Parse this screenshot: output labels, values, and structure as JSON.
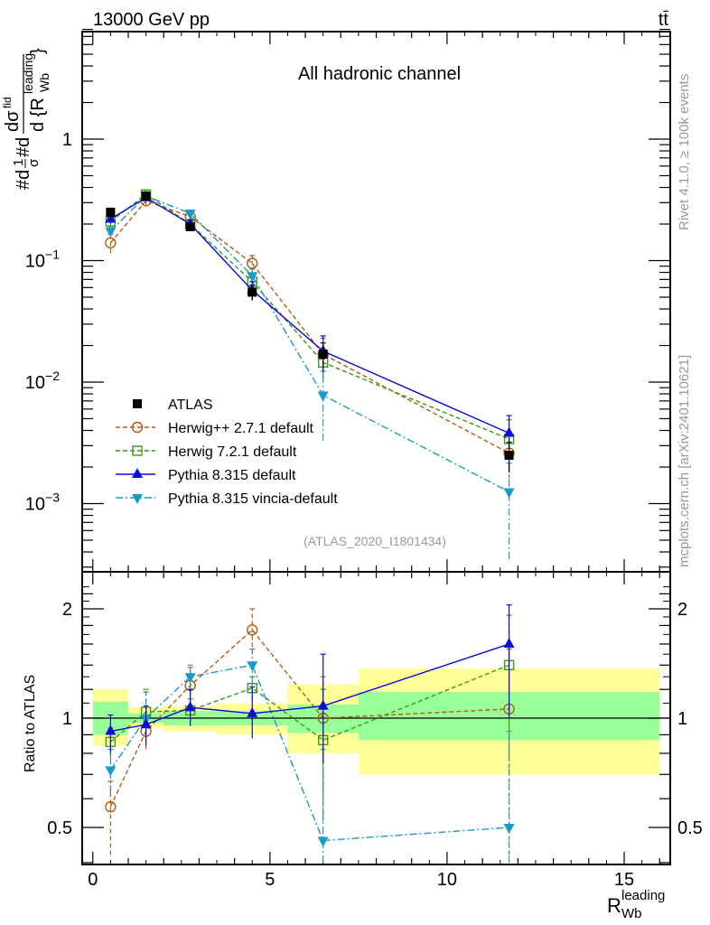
{
  "header": {
    "energy_label": "13000 GeV pp",
    "process_label": "tt̄",
    "channel_label": "All hadronic channel",
    "analysis_id": "(ATLAS_2020_I1801434)",
    "side_rivet": "Rivet 4.1.0, ≥ 100k events",
    "side_mcplots": "mcplots.cern.ch [arXiv:2401.10621]"
  },
  "chart_data": [
    {
      "type": "line",
      "panel": "main",
      "title": "All hadronic channel",
      "ylabel": "#d¹/σ #d dσ / d{R_Wb^leading}",
      "yscale": "log",
      "ylim": [
        0.0003,
        8
      ],
      "xlim": [
        -0.3,
        16.3
      ],
      "yticks": [
        {
          "value": 1,
          "label": "1"
        },
        {
          "value": 0.1,
          "label": "10",
          "exp": "−1"
        },
        {
          "value": 0.01,
          "label": "10",
          "exp": "−2"
        },
        {
          "value": 0.001,
          "label": "10",
          "exp": "−3"
        }
      ],
      "x": [
        0.5,
        1.5,
        2.75,
        4.5,
        6.5,
        11.75
      ],
      "bin_edges": [
        0,
        1,
        2,
        3.5,
        5.5,
        7.5,
        16
      ],
      "legend_position": "lower-left",
      "series": [
        {
          "name": "ATLAS",
          "key": "atlas",
          "color": "#000000",
          "marker": "square-filled",
          "dash": "none",
          "values": [
            0.25,
            0.34,
            0.19,
            0.055,
            0.017,
            0.0025
          ],
          "err": [
            0.02,
            0.02,
            0.012,
            0.008,
            0.004,
            0.0007
          ]
        },
        {
          "name": "Herwig++ 2.7.1 default",
          "key": "herwigpp",
          "color": "#b35c14",
          "marker": "circle-open",
          "dash": "dashed",
          "values": [
            0.14,
            0.31,
            0.23,
            0.095,
            0.017,
            0.0026
          ],
          "err": [
            0.025,
            0.025,
            0.02,
            0.015,
            0.006,
            0.0012
          ]
        },
        {
          "name": "Herwig 7.2.1 default",
          "key": "herwig7",
          "color": "#3a9a18",
          "marker": "square-open",
          "dash": "dashed",
          "values": [
            0.21,
            0.35,
            0.2,
            0.067,
            0.0145,
            0.0034
          ],
          "err": [
            0.015,
            0.02,
            0.015,
            0.009,
            0.004,
            0.0015
          ]
        },
        {
          "name": "Pythia 8.315 default",
          "key": "pythia",
          "color": "#0a0ad6",
          "marker": "triangle-up-filled",
          "dash": "solid",
          "values": [
            0.22,
            0.33,
            0.2,
            0.057,
            0.018,
            0.0038
          ],
          "err": [
            0.02,
            0.02,
            0.015,
            0.01,
            0.006,
            0.0015
          ]
        },
        {
          "name": "Pythia 8.315 vincia-default",
          "key": "vincia",
          "color": "#1a9ac4",
          "marker": "triangle-down-filled",
          "dash": "dashdot",
          "values": [
            0.175,
            0.34,
            0.245,
            0.075,
            0.0078,
            0.00125
          ],
          "err": [
            0.015,
            0.02,
            0.015,
            0.01,
            0.0045,
            0.0009
          ]
        }
      ]
    },
    {
      "type": "line",
      "panel": "ratio",
      "ylabel": "Ratio to ATLAS",
      "xlabel": "R_Wb^leading",
      "yscale": "log",
      "ylim": [
        0.4,
        2.35
      ],
      "xlim": [
        -0.3,
        16.3
      ],
      "xticks": [
        0,
        5,
        10,
        15
      ],
      "yticks": [
        0.5,
        1,
        2
      ],
      "x": [
        0.5,
        1.5,
        2.75,
        4.5,
        6.5,
        11.75
      ],
      "bin_edges": [
        0,
        1,
        2,
        3.5,
        5.5,
        7.5,
        16
      ],
      "bands": {
        "stat_color": "#99ff99",
        "total_color": "#ffff99",
        "stat": [
          [
            0.9,
            1.11
          ],
          [
            0.97,
            1.03
          ],
          [
            0.955,
            1.045
          ],
          [
            0.955,
            1.045
          ],
          [
            0.91,
            1.09
          ],
          [
            0.87,
            1.18
          ]
        ],
        "total": [
          [
            0.84,
            1.2
          ],
          [
            0.94,
            1.07
          ],
          [
            0.92,
            1.08
          ],
          [
            0.9,
            1.1
          ],
          [
            0.8,
            1.24
          ],
          [
            0.7,
            1.37
          ]
        ]
      },
      "series": [
        {
          "name": "Herwig++ 2.7.1 default",
          "key": "herwigpp",
          "values": [
            0.57,
            0.92,
            1.23,
            1.75,
            1.0,
            1.06
          ],
          "lo": [
            0.42,
            0.82,
            1.05,
            1.5,
            0.62,
            0.42
          ],
          "hi": [
            0.67,
            1.02,
            1.38,
            2.0,
            1.3,
            1.55
          ]
        },
        {
          "name": "Herwig 7.2.1 default",
          "key": "herwig7",
          "values": [
            0.86,
            1.04,
            1.05,
            1.21,
            0.87,
            1.4
          ],
          "lo": [
            0.78,
            0.96,
            0.97,
            1.12,
            0.52,
            0.78
          ],
          "hi": [
            0.94,
            1.2,
            1.13,
            1.3,
            1.2,
            1.92
          ]
        },
        {
          "name": "Pythia 8.315 default",
          "key": "pythia",
          "values": [
            0.92,
            0.96,
            1.07,
            1.03,
            1.08,
            1.6
          ],
          "lo": [
            0.8,
            0.84,
            0.95,
            0.88,
            0.75,
            1.0
          ],
          "hi": [
            1.02,
            1.08,
            1.2,
            1.22,
            1.5,
            2.05
          ]
        },
        {
          "name": "Pythia 8.315 vincia-default",
          "key": "vincia",
          "values": [
            0.72,
            1.0,
            1.3,
            1.4,
            0.46,
            0.5
          ],
          "lo": [
            0.62,
            0.9,
            1.2,
            1.25,
            0.25,
            0.38
          ],
          "hi": [
            0.82,
            1.18,
            1.4,
            1.55,
            0.82,
            0.92
          ]
        }
      ]
    }
  ]
}
